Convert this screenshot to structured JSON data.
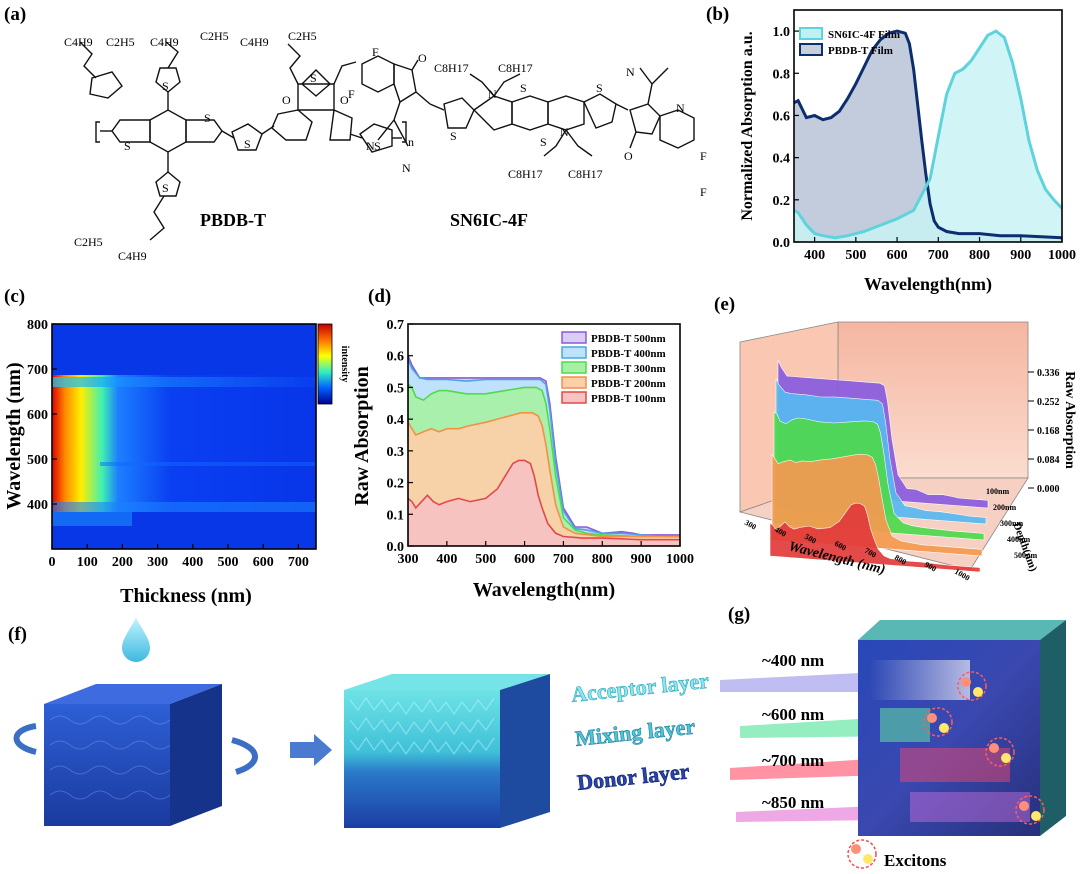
{
  "panels": {
    "a": "(a)",
    "b": "(b)",
    "c": "(c)",
    "d": "(d)",
    "e": "(e)",
    "f": "(f)",
    "g": "(g)"
  },
  "molecules": {
    "donor": {
      "name": "PBDB-T",
      "substituents": [
        "C4H9",
        "C2H5",
        "C4H9",
        "C2H5",
        "C4H9",
        "C2H5",
        "C2H5",
        "C4H9"
      ],
      "repeat": "n",
      "groups": [
        "O",
        "O",
        "S",
        "S",
        "S",
        "S",
        "S",
        "S",
        "S"
      ]
    },
    "acceptor": {
      "name": "SN6IC-4F",
      "substituents": [
        "F",
        "F",
        "F",
        "F",
        "C8H17",
        "C8H17",
        "C8H17",
        "C8H17"
      ],
      "groups": [
        "O",
        "O",
        "N",
        "N",
        "N",
        "N",
        "N",
        "N",
        "S",
        "S",
        "S",
        "S"
      ]
    }
  },
  "chart_data": [
    {
      "id": "b",
      "type": "area",
      "xlabel": "Wavelength(nm)",
      "ylabel": "Normalized Absorption a.u.",
      "xlim": [
        350,
        1000
      ],
      "ylim": [
        0,
        1.1
      ],
      "xticks": [
        400,
        500,
        600,
        700,
        800,
        900,
        1000
      ],
      "yticks": [
        0.0,
        0.2,
        0.4,
        0.6,
        0.8,
        1.0
      ],
      "legend": "top-left",
      "series": [
        {
          "name": "SN6IC-4F Film",
          "color": "#5fd3dc",
          "x": [
            350,
            360,
            380,
            400,
            420,
            450,
            480,
            520,
            560,
            600,
            640,
            680,
            700,
            720,
            740,
            760,
            780,
            800,
            820,
            840,
            860,
            880,
            900,
            920,
            940,
            960,
            980,
            1000
          ],
          "y": [
            0.15,
            0.14,
            0.08,
            0.04,
            0.03,
            0.02,
            0.03,
            0.05,
            0.08,
            0.11,
            0.15,
            0.3,
            0.5,
            0.7,
            0.8,
            0.82,
            0.86,
            0.92,
            0.98,
            1.0,
            0.97,
            0.85,
            0.68,
            0.48,
            0.34,
            0.25,
            0.2,
            0.16
          ]
        },
        {
          "name": "PBDB-T Film",
          "color": "#0d2e6e",
          "x": [
            350,
            360,
            380,
            400,
            420,
            440,
            460,
            480,
            500,
            520,
            540,
            560,
            580,
            600,
            620,
            630,
            640,
            650,
            660,
            670,
            680,
            690,
            700,
            720,
            750,
            800,
            850,
            900,
            1000
          ],
          "y": [
            0.66,
            0.67,
            0.59,
            0.6,
            0.58,
            0.59,
            0.62,
            0.68,
            0.75,
            0.83,
            0.91,
            0.96,
            0.99,
            1.0,
            0.99,
            0.94,
            0.82,
            0.65,
            0.48,
            0.32,
            0.18,
            0.1,
            0.07,
            0.05,
            0.04,
            0.04,
            0.03,
            0.03,
            0.02
          ]
        }
      ]
    },
    {
      "id": "c",
      "type": "heatmap",
      "xlabel": "Thickness (nm)",
      "ylabel": "Wavelength (nm)",
      "xlim": [
        0,
        750
      ],
      "ylim": [
        300,
        800
      ],
      "xticks": [
        0,
        100,
        200,
        300,
        400,
        500,
        600,
        700
      ],
      "yticks": [
        400,
        500,
        600,
        700,
        800
      ],
      "colorbar_label": "intensity",
      "colormap": [
        "#00008f",
        "#0050ff",
        "#00d0ff",
        "#60ff90",
        "#ffff00",
        "#ff8000",
        "#e00000"
      ]
    },
    {
      "id": "d",
      "type": "area",
      "xlabel": "Wavelength(nm)",
      "ylabel": "Raw Absorption",
      "xlim": [
        300,
        1000
      ],
      "ylim": [
        0,
        0.7
      ],
      "xticks": [
        300,
        400,
        500,
        600,
        700,
        800,
        900,
        1000
      ],
      "yticks": [
        0.0,
        0.1,
        0.2,
        0.3,
        0.4,
        0.5,
        0.6,
        0.7
      ],
      "legend": "top-right",
      "series": [
        {
          "name": "PBDB-T 500nm",
          "color": "#8b5bd6",
          "x": [
            300,
            310,
            330,
            350,
            400,
            450,
            500,
            550,
            600,
            640,
            655,
            665,
            680,
            700,
            730,
            760,
            800,
            850,
            880,
            900,
            950,
            1000
          ],
          "y": [
            0.6,
            0.57,
            0.53,
            0.53,
            0.53,
            0.53,
            0.53,
            0.53,
            0.53,
            0.53,
            0.52,
            0.45,
            0.28,
            0.12,
            0.06,
            0.06,
            0.04,
            0.045,
            0.04,
            0.035,
            0.035,
            0.035
          ]
        },
        {
          "name": "PBDB-T 400nm",
          "color": "#4aa5e6",
          "x": [
            300,
            310,
            330,
            350,
            400,
            450,
            500,
            550,
            600,
            640,
            655,
            665,
            680,
            700,
            730,
            760,
            800,
            850,
            900,
            950,
            1000
          ],
          "y": [
            0.59,
            0.56,
            0.53,
            0.525,
            0.525,
            0.52,
            0.525,
            0.525,
            0.525,
            0.525,
            0.51,
            0.43,
            0.26,
            0.11,
            0.055,
            0.05,
            0.04,
            0.04,
            0.035,
            0.03,
            0.03
          ]
        },
        {
          "name": "PBDB-T 300nm",
          "color": "#4fdb4f",
          "x": [
            300,
            310,
            320,
            340,
            360,
            380,
            400,
            450,
            500,
            550,
            600,
            630,
            645,
            655,
            665,
            680,
            700,
            730,
            760,
            800,
            900,
            1000
          ],
          "y": [
            0.51,
            0.5,
            0.47,
            0.46,
            0.48,
            0.49,
            0.49,
            0.48,
            0.48,
            0.49,
            0.5,
            0.5,
            0.49,
            0.45,
            0.37,
            0.22,
            0.09,
            0.05,
            0.04,
            0.035,
            0.03,
            0.03
          ]
        },
        {
          "name": "PBDB-T 200nm",
          "color": "#f39145",
          "x": [
            300,
            310,
            320,
            340,
            360,
            380,
            400,
            430,
            460,
            500,
            530,
            560,
            590,
            620,
            635,
            645,
            655,
            665,
            680,
            700,
            730,
            800,
            900,
            1000
          ],
          "y": [
            0.39,
            0.37,
            0.35,
            0.36,
            0.37,
            0.36,
            0.37,
            0.37,
            0.38,
            0.39,
            0.4,
            0.41,
            0.42,
            0.42,
            0.41,
            0.38,
            0.32,
            0.24,
            0.13,
            0.06,
            0.04,
            0.03,
            0.03,
            0.03
          ]
        },
        {
          "name": "PBDB-T 100nm",
          "color": "#e14a4a",
          "x": [
            300,
            310,
            320,
            335,
            350,
            365,
            380,
            400,
            430,
            460,
            500,
            530,
            550,
            570,
            585,
            600,
            615,
            625,
            635,
            645,
            660,
            680,
            700,
            750,
            800,
            900,
            1000
          ],
          "y": [
            0.15,
            0.14,
            0.12,
            0.14,
            0.16,
            0.14,
            0.13,
            0.14,
            0.15,
            0.14,
            0.15,
            0.18,
            0.22,
            0.26,
            0.27,
            0.27,
            0.26,
            0.22,
            0.16,
            0.12,
            0.07,
            0.04,
            0.03,
            0.025,
            0.025,
            0.02,
            0.02
          ]
        }
      ]
    },
    {
      "id": "e",
      "type": "area",
      "xlabel": "Wavelength (nm)",
      "ylabel": "Raw Absorption",
      "zlabel": "Depth(nm)",
      "ticks": [
        "0.336",
        "0.252",
        "0.168",
        "0.084",
        "0.000"
      ],
      "depths": [
        "100nm",
        "200nm",
        "300nm",
        "400nm",
        "500nm"
      ],
      "wavelength_ticks": [
        "300",
        "400",
        "500",
        "600",
        "700",
        "800",
        "900",
        "1000"
      ],
      "series_colors": [
        "#8a5ce0",
        "#58b9f0",
        "#4fd94f",
        "#f59a50",
        "#e23b3b"
      ]
    }
  ],
  "schematic": {
    "layers": [
      "Acceptor layer",
      "Mixing layer",
      "Donor layer"
    ],
    "wavelengths": [
      "~400 nm",
      "~600 nm",
      "~700 nm",
      "~850 nm"
    ],
    "exciton_label": "Excitons"
  }
}
